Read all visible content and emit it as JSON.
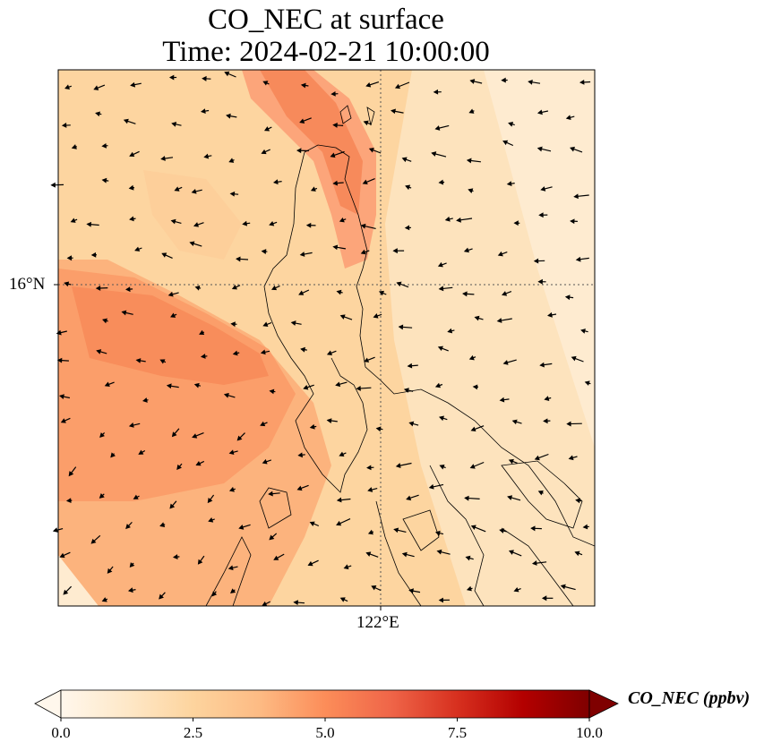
{
  "title": {
    "line1": "CO_NEC at surface",
    "line2": "Time: 2024-02-21 10:00:00"
  },
  "map": {
    "lat_label": "16°N",
    "lon_label": "122°E",
    "colormap": "OrRd",
    "colors": {
      "low": "#fff7ec",
      "mid": "#fdbb84",
      "high": "#e34a33",
      "max": "#7f0000",
      "coastline": "#000000",
      "gridline": "#555555"
    }
  },
  "colorbar": {
    "label": "CO_NEC (ppbv)",
    "ticks": [
      "0.0",
      "2.5",
      "5.0",
      "7.5",
      "10.0"
    ],
    "range": [
      0,
      10
    ],
    "extend": "both"
  }
}
